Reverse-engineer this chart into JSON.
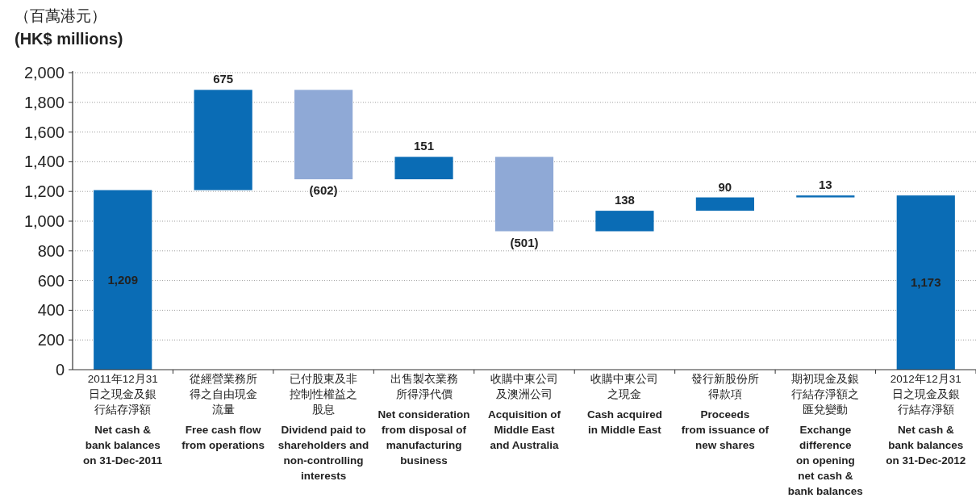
{
  "chart_data": {
    "type": "bar",
    "ylabel": "（百萬港元）\n(HK$ millions)",
    "categories": [
      "2011年12月31日之現金及銀行結存淨額\n\nNet cash &\nbank balances\non 31-Dec-2011",
      "從經營業務所得之自由現金流量\n\nFree cash flow\nfrom operations",
      "已付股東及非控制性權益之股息\n\nDividend paid to\nshareholders and\nnon-controlling\ninterests",
      "出售製衣業務所得淨代價\n\nNet consideration\nfrom disposal of\nmanufacturing\nbusiness",
      "收購中東公司及澳洲公司\n\nAcquisition of\nMiddle East\nand Australia",
      "收購中東公司之現金\n\nCash acquired\nin Middle East",
      "發行新股份所得款項\n\nProceeds\nfrom issuance of\nnew shares",
      "期初現金及銀行結存淨額之匯兌變動\n\nExchange\ndifference\non opening\nnet cash &\nbank balances",
      "2012年12月31日之現金及銀行結存淨額\n\nNet cash &\nbank balances\non 31-Dec-2012"
    ],
    "values": [
      1209,
      675,
      -602,
      151,
      -501,
      138,
      90,
      13,
      1173
    ],
    "base": [
      0,
      1209,
      1884,
      1282,
      1433,
      932,
      1070,
      1160,
      0
    ],
    "colors": [
      "#0a6cb5",
      "#0a6cb5",
      "#8fa9d6",
      "#0a6cb5",
      "#8fa9d6",
      "#0a6cb5",
      "#0a6cb5",
      "#0a6cb5",
      "#0a6cb5"
    ],
    "value_labels": [
      "1,209",
      "675",
      "(602)",
      "151",
      "(501)",
      "138",
      "90",
      "13",
      "1,173"
    ],
    "ylim": [
      0,
      2000
    ],
    "yticks": [
      0,
      200,
      400,
      600,
      800,
      {
        "value": 1000,
        "label": "1,000"
      },
      {
        "value": 1200,
        "label": "1,200"
      },
      {
        "value": 1400,
        "label": "1,400"
      },
      {
        "value": 1600,
        "label": "1,600"
      },
      {
        "value": 1800,
        "label": "1,800"
      },
      {
        "value": 2000,
        "label": "2,000"
      }
    ],
    "grid": "y"
  }
}
